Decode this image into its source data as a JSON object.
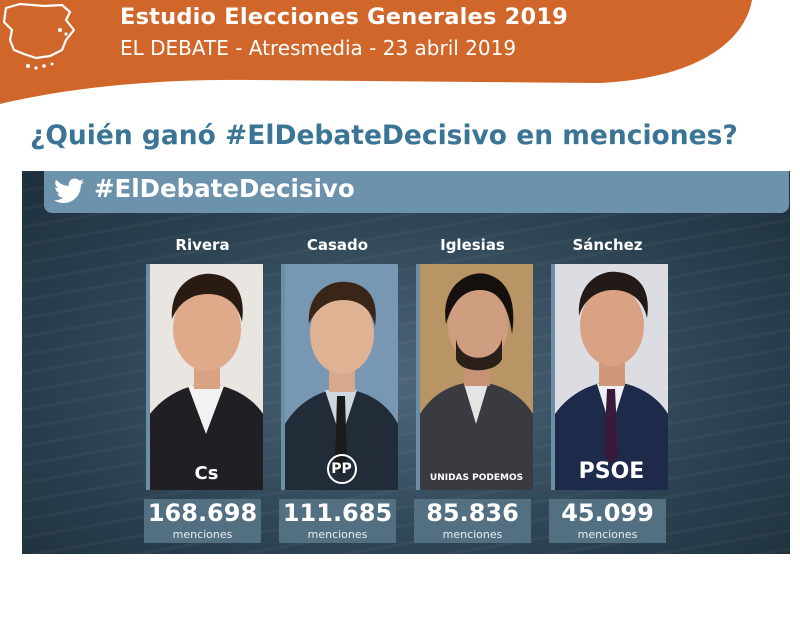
{
  "header": {
    "title": "Estudio Elecciones Generales 2019",
    "subtitle": "EL DEBATE - Atresmedia - 23 abril 2019",
    "band_color": "#d0662a"
  },
  "question": "¿Quién ganó #ElDebateDecisivo en menciones?",
  "infographic": {
    "hashtag": "#ElDebateDecisivo",
    "icon": "twitter-bird-icon",
    "candidates": [
      {
        "name": "Rivera",
        "party_logo": "Cs",
        "mentions": "168.698",
        "label": "menciones"
      },
      {
        "name": "Casado",
        "party_logo": "PP",
        "mentions": "111.685",
        "label": "menciones"
      },
      {
        "name": "Iglesias",
        "party_logo": "UNIDAS PODEMOS",
        "mentions": "85.836",
        "label": "menciones"
      },
      {
        "name": "Sánchez",
        "party_logo": "PSOE",
        "mentions": "45.099",
        "label": "menciones"
      }
    ]
  }
}
